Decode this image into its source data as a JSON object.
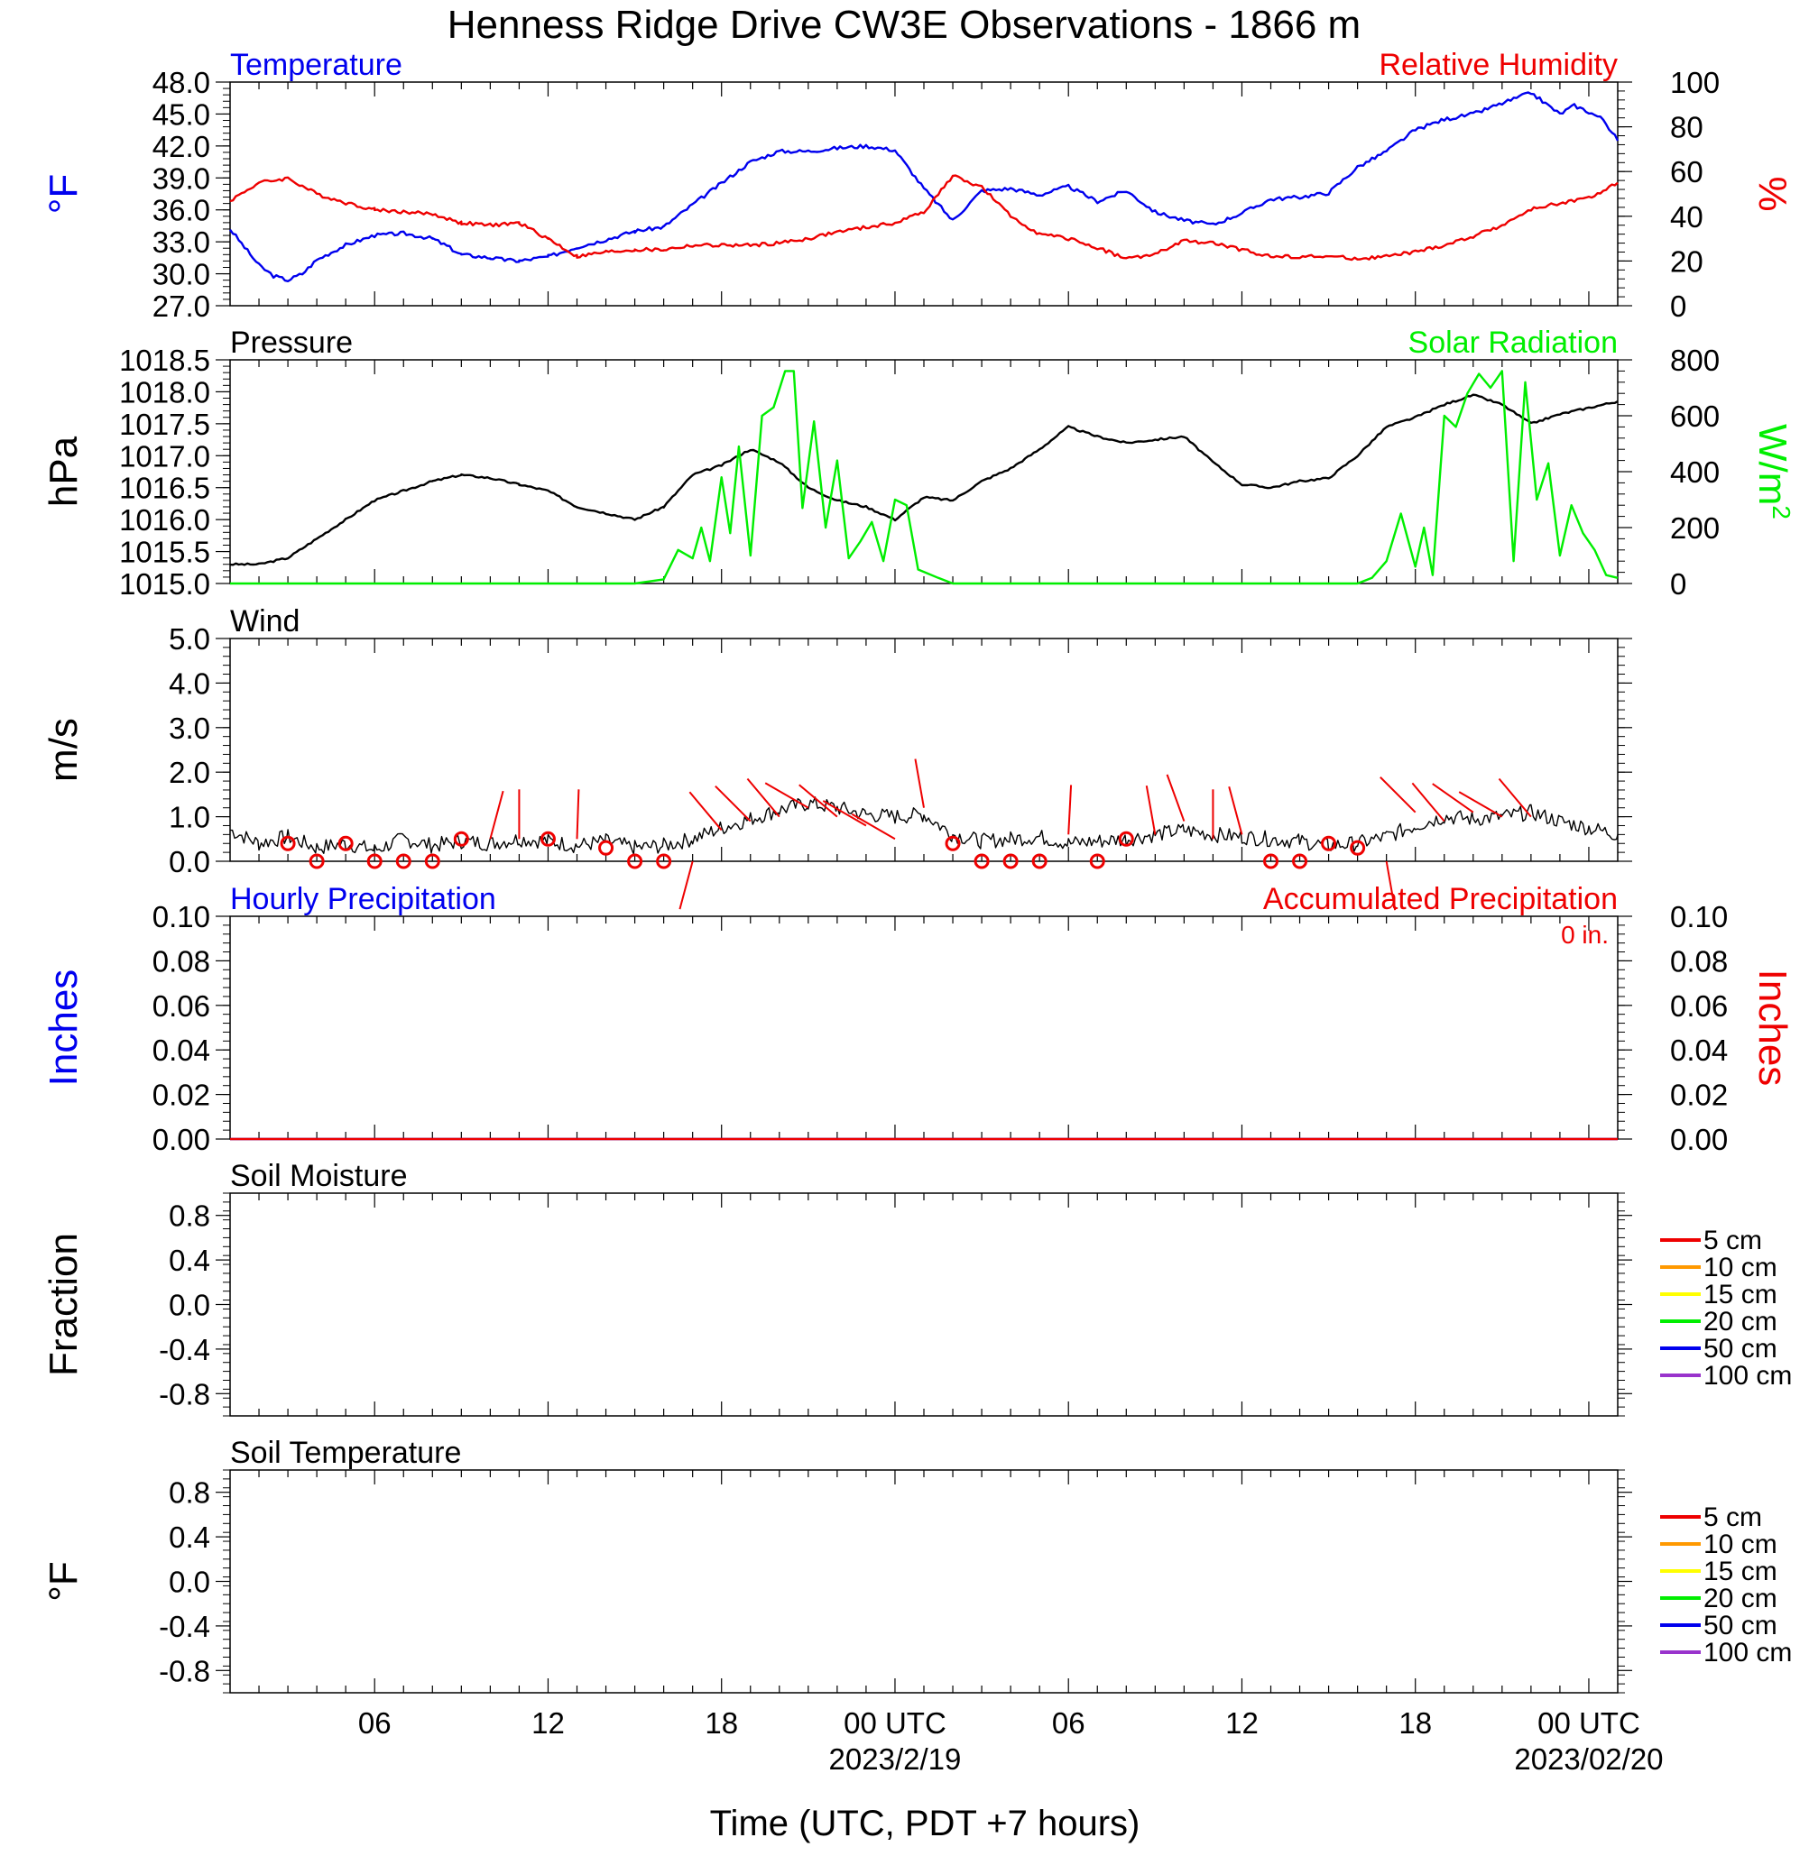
{
  "title": "Henness Ridge Drive CW3E Observations - 1866 m",
  "colors": {
    "temperature": "#0000ee",
    "humidity": "#ee0000",
    "pressure": "#000000",
    "solar": "#00ee00",
    "wind": "#000000",
    "barb": "#ee0000",
    "precip_hourly": "#0000ee",
    "precip_accum": "#ee0000",
    "soil_5": "#ee0000",
    "soil_10": "#ff9900",
    "soil_15": "#ffff00",
    "soil_20": "#00ee00",
    "soil_50": "#0000ee",
    "soil_100": "#9933cc"
  },
  "x_axis": {
    "ticks": [
      {
        "hour": 6,
        "label": "06",
        "date": ""
      },
      {
        "hour": 12,
        "label": "12",
        "date": ""
      },
      {
        "hour": 18,
        "label": "18",
        "date": ""
      },
      {
        "hour": 24,
        "label": "00 UTC",
        "date": "2023/2/19"
      },
      {
        "hour": 30,
        "label": "06",
        "date": ""
      },
      {
        "hour": 36,
        "label": "12",
        "date": ""
      },
      {
        "hour": 42,
        "label": "18",
        "date": ""
      },
      {
        "hour": 48,
        "label": "00 UTC",
        "date": "2023/02/20"
      }
    ],
    "range_hours": [
      1,
      49
    ],
    "label": "Time (UTC, PDT +7 hours)"
  },
  "chart_data": [
    {
      "id": "temp_rh",
      "type": "line",
      "left_title": "Temperature",
      "right_title": "Relative Humidity",
      "ylabel": "°F",
      "y2label": "%",
      "ylim": [
        27,
        48
      ],
      "y_ticks": [
        "27.0",
        "30.0",
        "33.0",
        "36.0",
        "39.0",
        "42.0",
        "45.0",
        "48.0"
      ],
      "y2lim": [
        0,
        100
      ],
      "y2_ticks": [
        "0",
        "20",
        "40",
        "60",
        "80",
        "100"
      ],
      "series": [
        {
          "name": "Temperature",
          "axis": "left",
          "x": [
            1,
            1.5,
            2,
            2.5,
            3,
            3.5,
            4,
            5,
            6,
            7,
            8,
            8.5,
            9,
            10,
            10.5,
            11,
            12,
            13,
            14,
            15,
            16,
            17,
            18,
            19,
            20,
            21,
            22,
            23,
            24,
            25,
            26,
            27,
            28,
            29,
            30,
            31,
            32,
            33,
            34,
            35,
            36,
            37,
            38,
            39,
            40,
            41,
            42,
            43,
            44,
            45,
            46,
            47,
            47.5,
            48,
            48.5,
            49
          ],
          "y": [
            34.2,
            32.5,
            30.8,
            29.8,
            29.4,
            30,
            31.3,
            32.7,
            33.6,
            33.8,
            33.3,
            32.6,
            31.8,
            31.5,
            31.3,
            31.2,
            31.6,
            32.5,
            33.2,
            34,
            34.4,
            36.5,
            38.5,
            40.5,
            41.5,
            41.5,
            41.8,
            42,
            41.6,
            38,
            35,
            37.8,
            38,
            37.4,
            38.2,
            36.8,
            37.8,
            35.8,
            35,
            34.6,
            35.7,
            37,
            37.2,
            37.6,
            40,
            41.5,
            43.5,
            44.5,
            45,
            46,
            47,
            45,
            45.8,
            45.2,
            44.5,
            42.5
          ]
        },
        {
          "name": "Relative Humidity",
          "axis": "right",
          "x": [
            1,
            2,
            3,
            4,
            5,
            6,
            7,
            8,
            9,
            10,
            11,
            12,
            13,
            14,
            15,
            16,
            17,
            18,
            19,
            20,
            21,
            22,
            23,
            24,
            25,
            26,
            27,
            28,
            29,
            30,
            31,
            32,
            33,
            34,
            35,
            36,
            37,
            38,
            39,
            40,
            41,
            42,
            43,
            44,
            45,
            46,
            47,
            48,
            49
          ],
          "y": [
            47,
            55,
            57,
            50,
            46,
            43,
            42,
            41,
            37,
            36,
            37,
            30,
            22,
            24,
            25,
            25,
            27,
            27,
            27,
            28,
            30,
            33,
            35,
            37,
            42,
            58,
            53,
            40,
            32,
            30,
            26,
            21,
            23,
            29,
            28,
            25,
            22,
            22,
            22,
            21,
            22,
            24,
            27,
            31,
            36,
            43,
            46,
            48,
            55
          ]
        }
      ]
    },
    {
      "id": "pressure_solar",
      "type": "line",
      "left_title": "Pressure",
      "right_title": "Solar Radiation",
      "ylabel": "hPa",
      "y2label": "W/m",
      "y2label_sup": "2",
      "ylim": [
        1015.0,
        1018.5
      ],
      "y_ticks": [
        "1015.0",
        "1015.5",
        "1016.0",
        "1016.5",
        "1017.0",
        "1017.5",
        "1018.0",
        "1018.5"
      ],
      "y2lim": [
        0,
        800
      ],
      "y2_ticks": [
        "0",
        "200",
        "400",
        "600",
        "800"
      ],
      "series": [
        {
          "name": "Pressure",
          "axis": "left",
          "x": [
            1,
            2,
            3,
            4,
            5,
            6,
            7,
            8,
            9,
            10,
            11,
            12,
            13,
            14,
            15,
            16,
            17,
            18,
            19,
            20,
            21,
            22,
            23,
            24,
            25,
            26,
            27,
            28,
            29,
            30,
            31,
            32,
            33,
            34,
            35,
            36,
            37,
            38,
            39,
            40,
            41,
            42,
            43,
            44,
            45,
            46,
            47,
            48,
            49
          ],
          "y": [
            1015.3,
            1015.3,
            1015.4,
            1015.7,
            1016.0,
            1016.3,
            1016.45,
            1016.6,
            1016.7,
            1016.65,
            1016.55,
            1016.45,
            1016.2,
            1016.1,
            1016.0,
            1016.2,
            1016.7,
            1016.85,
            1017.1,
            1016.9,
            1016.5,
            1016.3,
            1016.2,
            1016.0,
            1016.35,
            1016.3,
            1016.6,
            1016.8,
            1017.1,
            1017.45,
            1017.3,
            1017.2,
            1017.25,
            1017.3,
            1016.9,
            1016.55,
            1016.5,
            1016.6,
            1016.65,
            1017.0,
            1017.45,
            1017.6,
            1017.8,
            1017.95,
            1017.8,
            1017.5,
            1017.65,
            1017.75,
            1017.85
          ]
        },
        {
          "name": "Solar Radiation",
          "axis": "right",
          "x": [
            1,
            9,
            15,
            16,
            16.5,
            17,
            17.3,
            17.6,
            18,
            18.3,
            18.6,
            19,
            19.4,
            19.8,
            20.2,
            20.5,
            20.8,
            21.2,
            21.6,
            22,
            22.4,
            22.8,
            23.2,
            23.6,
            24,
            24.4,
            24.8,
            25.5,
            26,
            26.5,
            37,
            40,
            40.5,
            41,
            41.5,
            42,
            42.3,
            42.6,
            43,
            43.4,
            43.8,
            44.2,
            44.6,
            45,
            45.4,
            45.8,
            46.2,
            46.6,
            47,
            47.4,
            47.8,
            48.2,
            48.6,
            49
          ],
          "y": [
            0,
            0,
            0,
            15,
            120,
            90,
            200,
            80,
            380,
            180,
            490,
            100,
            600,
            630,
            760,
            760,
            270,
            580,
            200,
            440,
            90,
            150,
            220,
            80,
            300,
            280,
            50,
            20,
            0,
            0,
            0,
            0,
            20,
            80,
            250,
            60,
            200,
            30,
            600,
            560,
            680,
            750,
            700,
            760,
            80,
            720,
            300,
            430,
            100,
            280,
            180,
            120,
            30,
            20
          ]
        }
      ]
    },
    {
      "id": "wind",
      "type": "line",
      "left_title": "Wind",
      "ylabel": "m/s",
      "ylim": [
        0,
        5
      ],
      "y_ticks": [
        "0.0",
        "1.0",
        "2.0",
        "3.0",
        "4.0",
        "5.0"
      ],
      "series": [
        {
          "name": "Wind",
          "x": [
            1,
            2,
            3,
            4,
            5,
            6,
            7,
            8,
            9,
            10,
            11,
            12,
            13,
            14,
            15,
            16,
            17,
            18,
            19,
            20,
            21,
            22,
            23,
            24,
            25,
            26,
            27,
            28,
            29,
            30,
            31,
            32,
            33,
            34,
            35,
            36,
            37,
            38,
            39,
            40,
            41,
            42,
            43,
            44,
            45,
            46,
            47,
            48,
            49
          ],
          "y": [
            0.7,
            0.4,
            0.55,
            0.3,
            0.4,
            0.25,
            0.5,
            0.35,
            0.45,
            0.4,
            0.5,
            0.45,
            0.35,
            0.45,
            0.3,
            0.35,
            0.5,
            0.75,
            0.95,
            1.15,
            1.3,
            1.2,
            1.05,
            1.0,
            1.05,
            0.6,
            0.45,
            0.5,
            0.55,
            0.4,
            0.45,
            0.5,
            0.6,
            0.7,
            0.6,
            0.55,
            0.5,
            0.45,
            0.35,
            0.4,
            0.55,
            0.8,
            1.0,
            0.95,
            1.0,
            1.1,
            0.9,
            0.75,
            0.6
          ]
        }
      ],
      "barbs": [
        {
          "x": 3,
          "speed": 0.4,
          "dir": "calm"
        },
        {
          "x": 4,
          "speed": 0.0,
          "dir": "calm"
        },
        {
          "x": 5,
          "speed": 0.4,
          "dir": "calm"
        },
        {
          "x": 6,
          "speed": 0.0,
          "dir": "calm"
        },
        {
          "x": 7,
          "speed": 0.0,
          "dir": "calm"
        },
        {
          "x": 8,
          "speed": 0.0,
          "dir": "calm"
        },
        {
          "x": 9,
          "speed": 0.5,
          "dir": "calm"
        },
        {
          "x": 10,
          "speed": 0.5,
          "dir": 15
        },
        {
          "x": 11,
          "speed": 0.5,
          "dir": 0
        },
        {
          "x": 12,
          "speed": 0.5,
          "dir": "calm"
        },
        {
          "x": 13,
          "speed": 0.5,
          "dir": 2
        },
        {
          "x": 14,
          "speed": 0.3,
          "dir": "calm"
        },
        {
          "x": 15,
          "speed": 0.0,
          "dir": "calm"
        },
        {
          "x": 16,
          "speed": 0.0,
          "dir": "calm"
        },
        {
          "x": 17,
          "speed": 0.0,
          "dir": 195
        },
        {
          "x": 18,
          "speed": 0.7,
          "dir": 320
        },
        {
          "x": 19,
          "speed": 0.9,
          "dir": 315
        },
        {
          "x": 20,
          "speed": 1.0,
          "dir": 320
        },
        {
          "x": 21,
          "speed": 1.2,
          "dir": 300
        },
        {
          "x": 22,
          "speed": 1.0,
          "dir": 310
        },
        {
          "x": 23,
          "speed": 0.8,
          "dir": 300
        },
        {
          "x": 24,
          "speed": 0.5,
          "dir": 300
        },
        {
          "x": 25,
          "speed": 1.2,
          "dir": 350
        },
        {
          "x": 26,
          "speed": 0.4,
          "dir": "calm"
        },
        {
          "x": 27,
          "speed": 0.0,
          "dir": "calm"
        },
        {
          "x": 28,
          "speed": 0.0,
          "dir": "calm"
        },
        {
          "x": 29,
          "speed": 0.0,
          "dir": "calm"
        },
        {
          "x": 30,
          "speed": 0.6,
          "dir": 3
        },
        {
          "x": 31,
          "speed": 0.0,
          "dir": "calm"
        },
        {
          "x": 32,
          "speed": 0.5,
          "dir": "calm"
        },
        {
          "x": 33,
          "speed": 0.6,
          "dir": 350
        },
        {
          "x": 34,
          "speed": 0.9,
          "dir": 340
        },
        {
          "x": 35,
          "speed": 0.5,
          "dir": 0
        },
        {
          "x": 36,
          "speed": 0.6,
          "dir": 345
        },
        {
          "x": 37,
          "speed": 0.0,
          "dir": "calm"
        },
        {
          "x": 38,
          "speed": 0.0,
          "dir": "calm"
        },
        {
          "x": 39,
          "speed": 0.4,
          "dir": "calm"
        },
        {
          "x": 40,
          "speed": 0.3,
          "dir": "calm"
        },
        {
          "x": 41,
          "speed": 0.0,
          "dir": 170
        },
        {
          "x": 42,
          "speed": 1.1,
          "dir": 315
        },
        {
          "x": 43,
          "speed": 0.9,
          "dir": 320
        },
        {
          "x": 44,
          "speed": 1.1,
          "dir": 305
        },
        {
          "x": 45,
          "speed": 1.0,
          "dir": 300
        },
        {
          "x": 46,
          "speed": 1.0,
          "dir": 320
        }
      ]
    },
    {
      "id": "precip",
      "type": "line",
      "left_title": "Hourly Precipitation",
      "right_title": "Accumulated Precipitation",
      "annotation": "0 in.",
      "ylabel": "Inches",
      "y2label": "Inches",
      "ylim": [
        0,
        0.1
      ],
      "y_ticks": [
        "0.00",
        "0.02",
        "0.04",
        "0.06",
        "0.08",
        "0.10"
      ],
      "y2lim": [
        0,
        0.1
      ],
      "y2_ticks": [
        "0.00",
        "0.02",
        "0.04",
        "0.06",
        "0.08",
        "0.10"
      ],
      "series": [
        {
          "name": "Hourly Precipitation",
          "axis": "left",
          "x": [
            1,
            49
          ],
          "y": [
            0,
            0
          ]
        },
        {
          "name": "Accumulated Precipitation",
          "axis": "right",
          "x": [
            1,
            49
          ],
          "y": [
            0,
            0
          ]
        }
      ]
    },
    {
      "id": "soil_moisture",
      "type": "line",
      "left_title": "Soil Moisture",
      "ylabel": "Fraction",
      "ylim": [
        -1,
        1
      ],
      "y_ticks": [
        {
          "v": 0.8,
          "label": "0.8"
        },
        {
          "v": 0.4,
          "label": "0.4"
        },
        {
          "v": 0.0,
          "label": "0.0"
        },
        {
          "v": -0.4,
          "label": "-0.4"
        },
        {
          "v": -0.8,
          "label": "-0.8"
        }
      ],
      "legend": [
        "5 cm",
        "10 cm",
        "15 cm",
        "20 cm",
        "50 cm",
        "100 cm"
      ],
      "series": []
    },
    {
      "id": "soil_temperature",
      "type": "line",
      "left_title": "Soil Temperature",
      "ylabel": "°F",
      "ylim": [
        -1,
        1
      ],
      "y_ticks": [
        {
          "v": 0.8,
          "label": "0.8"
        },
        {
          "v": 0.4,
          "label": "0.4"
        },
        {
          "v": 0.0,
          "label": "0.0"
        },
        {
          "v": -0.4,
          "label": "-0.4"
        },
        {
          "v": -0.8,
          "label": "-0.8"
        }
      ],
      "legend": [
        "5 cm",
        "10 cm",
        "15 cm",
        "20 cm",
        "50 cm",
        "100 cm"
      ],
      "series": []
    }
  ]
}
